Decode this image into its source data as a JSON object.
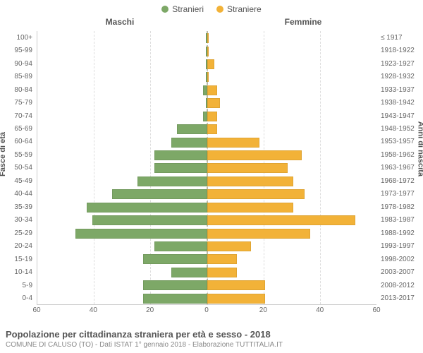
{
  "legend": {
    "male": {
      "label": "Stranieri",
      "color": "#7da867"
    },
    "female": {
      "label": "Straniere",
      "color": "#f2b238"
    }
  },
  "columns": {
    "left": "Maschi",
    "right": "Femmine"
  },
  "axes": {
    "left_title": "Fasce di età",
    "right_title": "Anni di nascita",
    "x_max": 60,
    "x_ticks": [
      60,
      40,
      20,
      0,
      20,
      40,
      60
    ],
    "grid_color": "#dddddd",
    "centerline_color": "#bbbb99"
  },
  "chart": {
    "type": "population-pyramid",
    "bar_color_male": "#7da867",
    "bar_color_female": "#f2b238",
    "background": "#ffffff",
    "rows": [
      {
        "age": "100+",
        "birth": "≤ 1917",
        "m": 0,
        "f": 0
      },
      {
        "age": "95-99",
        "birth": "1918-1922",
        "m": 0,
        "f": 0
      },
      {
        "age": "90-94",
        "birth": "1923-1927",
        "m": 0,
        "f": 2
      },
      {
        "age": "85-89",
        "birth": "1928-1932",
        "m": 0,
        "f": 0
      },
      {
        "age": "80-84",
        "birth": "1933-1937",
        "m": 1,
        "f": 3
      },
      {
        "age": "75-79",
        "birth": "1938-1942",
        "m": 0,
        "f": 4
      },
      {
        "age": "70-74",
        "birth": "1943-1947",
        "m": 1,
        "f": 3
      },
      {
        "age": "65-69",
        "birth": "1948-1952",
        "m": 10,
        "f": 3
      },
      {
        "age": "60-64",
        "birth": "1953-1957",
        "m": 12,
        "f": 18
      },
      {
        "age": "55-59",
        "birth": "1958-1962",
        "m": 18,
        "f": 33
      },
      {
        "age": "50-54",
        "birth": "1963-1967",
        "m": 18,
        "f": 28
      },
      {
        "age": "45-49",
        "birth": "1968-1972",
        "m": 24,
        "f": 30
      },
      {
        "age": "40-44",
        "birth": "1973-1977",
        "m": 33,
        "f": 34
      },
      {
        "age": "35-39",
        "birth": "1978-1982",
        "m": 42,
        "f": 30
      },
      {
        "age": "30-34",
        "birth": "1983-1987",
        "m": 40,
        "f": 52
      },
      {
        "age": "25-29",
        "birth": "1988-1992",
        "m": 46,
        "f": 36
      },
      {
        "age": "20-24",
        "birth": "1993-1997",
        "m": 18,
        "f": 15
      },
      {
        "age": "15-19",
        "birth": "1998-2002",
        "m": 22,
        "f": 10
      },
      {
        "age": "10-14",
        "birth": "2003-2007",
        "m": 12,
        "f": 10
      },
      {
        "age": "5-9",
        "birth": "2008-2012",
        "m": 22,
        "f": 20
      },
      {
        "age": "0-4",
        "birth": "2013-2017",
        "m": 22,
        "f": 20
      }
    ]
  },
  "footer": {
    "title": "Popolazione per cittadinanza straniera per età e sesso - 2018",
    "subtitle": "COMUNE DI CALUSO (TO) - Dati ISTAT 1° gennaio 2018 - Elaborazione TUTTITALIA.IT"
  }
}
